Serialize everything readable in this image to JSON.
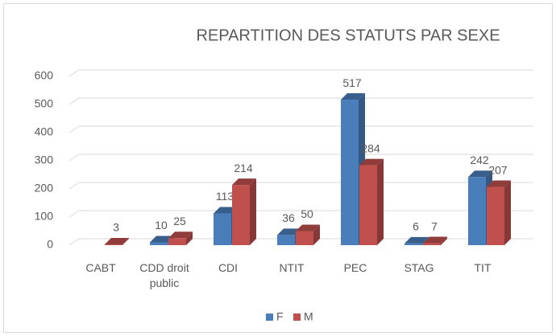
{
  "chart_data": {
    "type": "bar3d",
    "title": "REPARTITION DES STATUTS PAR SEXE",
    "categories": [
      "CABT",
      "CDD droit public",
      "CDI",
      "NTIT",
      "PEC",
      "STAG",
      "TIT"
    ],
    "series": [
      {
        "name": "F",
        "color": "#4a7ebb",
        "values": [
          null,
          10,
          113,
          36,
          517,
          6,
          242
        ]
      },
      {
        "name": "M",
        "color": "#c0504d",
        "values": [
          3,
          25,
          214,
          50,
          284,
          7,
          207
        ]
      }
    ],
    "ylim": [
      0,
      600
    ],
    "yticks": [
      0,
      100,
      200,
      300,
      400,
      500,
      600
    ],
    "grid": true,
    "legend": "bottom"
  }
}
